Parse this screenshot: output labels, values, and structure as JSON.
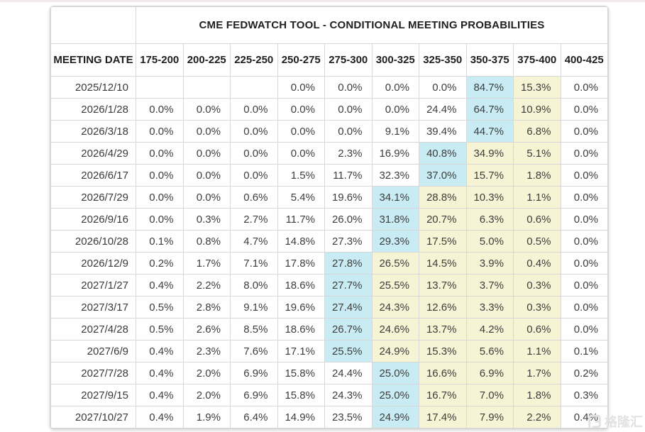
{
  "page": {
    "top_accent_color": "#f2eae9",
    "modal_highlight_color": "#c9ecf4",
    "tail_highlight_color": "#f6f4d4",
    "grid_color": "#d8d8d8"
  },
  "chart_data": {
    "type": "table",
    "title": "CME FEDWATCH TOOL - CONDITIONAL MEETING PROBABILITIES",
    "date_column_header": "MEETING DATE",
    "rate_columns": [
      "175-200",
      "200-225",
      "225-250",
      "250-275",
      "275-300",
      "300-325",
      "325-350",
      "350-375",
      "375-400",
      "400-425"
    ],
    "rows": [
      {
        "date": "2025/12/10",
        "values": [
          "",
          "",
          "",
          "0.0%",
          "0.0%",
          "0.0%",
          "0.0%",
          "84.7%",
          "15.3%",
          "0.0%"
        ],
        "hl": [
          "",
          "",
          "",
          "",
          "",
          "",
          "",
          "c",
          "y",
          ""
        ]
      },
      {
        "date": "2026/1/28",
        "values": [
          "0.0%",
          "0.0%",
          "0.0%",
          "0.0%",
          "0.0%",
          "0.0%",
          "24.4%",
          "64.7%",
          "10.9%",
          "0.0%"
        ],
        "hl": [
          "",
          "",
          "",
          "",
          "",
          "",
          "",
          "c",
          "y",
          ""
        ]
      },
      {
        "date": "2026/3/18",
        "values": [
          "0.0%",
          "0.0%",
          "0.0%",
          "0.0%",
          "0.0%",
          "9.1%",
          "39.4%",
          "44.7%",
          "6.8%",
          "0.0%"
        ],
        "hl": [
          "",
          "",
          "",
          "",
          "",
          "",
          "",
          "c",
          "y",
          ""
        ]
      },
      {
        "date": "2026/4/29",
        "values": [
          "0.0%",
          "0.0%",
          "0.0%",
          "0.0%",
          "2.3%",
          "16.9%",
          "40.8%",
          "34.9%",
          "5.1%",
          "0.0%"
        ],
        "hl": [
          "",
          "",
          "",
          "",
          "",
          "",
          "c",
          "y",
          "y",
          ""
        ]
      },
      {
        "date": "2026/6/17",
        "values": [
          "0.0%",
          "0.0%",
          "0.0%",
          "1.5%",
          "11.7%",
          "32.3%",
          "37.0%",
          "15.7%",
          "1.8%",
          "0.0%"
        ],
        "hl": [
          "",
          "",
          "",
          "",
          "",
          "",
          "c",
          "y",
          "y",
          ""
        ]
      },
      {
        "date": "2026/7/29",
        "values": [
          "0.0%",
          "0.0%",
          "0.6%",
          "5.4%",
          "19.6%",
          "34.1%",
          "28.8%",
          "10.3%",
          "1.1%",
          "0.0%"
        ],
        "hl": [
          "",
          "",
          "",
          "",
          "",
          "c",
          "y",
          "y",
          "y",
          ""
        ]
      },
      {
        "date": "2026/9/16",
        "values": [
          "0.0%",
          "0.3%",
          "2.7%",
          "11.7%",
          "26.0%",
          "31.8%",
          "20.7%",
          "6.3%",
          "0.6%",
          "0.0%"
        ],
        "hl": [
          "",
          "",
          "",
          "",
          "",
          "c",
          "y",
          "y",
          "y",
          ""
        ]
      },
      {
        "date": "2026/10/28",
        "values": [
          "0.1%",
          "0.8%",
          "4.7%",
          "14.8%",
          "27.3%",
          "29.3%",
          "17.5%",
          "5.0%",
          "0.5%",
          "0.0%"
        ],
        "hl": [
          "",
          "",
          "",
          "",
          "",
          "c",
          "y",
          "y",
          "y",
          ""
        ]
      },
      {
        "date": "2026/12/9",
        "values": [
          "0.2%",
          "1.7%",
          "7.1%",
          "17.8%",
          "27.8%",
          "26.5%",
          "14.5%",
          "3.9%",
          "0.4%",
          "0.0%"
        ],
        "hl": [
          "",
          "",
          "",
          "",
          "c",
          "y",
          "y",
          "y",
          "y",
          ""
        ]
      },
      {
        "date": "2027/1/27",
        "values": [
          "0.4%",
          "2.2%",
          "8.0%",
          "18.6%",
          "27.7%",
          "25.5%",
          "13.7%",
          "3.7%",
          "0.3%",
          "0.0%"
        ],
        "hl": [
          "",
          "",
          "",
          "",
          "c",
          "y",
          "y",
          "y",
          "y",
          ""
        ]
      },
      {
        "date": "2027/3/17",
        "values": [
          "0.5%",
          "2.8%",
          "9.1%",
          "19.6%",
          "27.4%",
          "24.3%",
          "12.6%",
          "3.3%",
          "0.3%",
          "0.0%"
        ],
        "hl": [
          "",
          "",
          "",
          "",
          "c",
          "y",
          "y",
          "y",
          "y",
          ""
        ]
      },
      {
        "date": "2027/4/28",
        "values": [
          "0.5%",
          "2.6%",
          "8.5%",
          "18.6%",
          "26.7%",
          "24.6%",
          "13.7%",
          "4.2%",
          "0.6%",
          "0.0%"
        ],
        "hl": [
          "",
          "",
          "",
          "",
          "c",
          "y",
          "y",
          "y",
          "y",
          ""
        ]
      },
      {
        "date": "2027/6/9",
        "values": [
          "0.4%",
          "2.3%",
          "7.6%",
          "17.1%",
          "25.5%",
          "24.9%",
          "15.3%",
          "5.6%",
          "1.1%",
          "0.1%"
        ],
        "hl": [
          "",
          "",
          "",
          "",
          "c",
          "y",
          "y",
          "y",
          "y",
          ""
        ]
      },
      {
        "date": "2027/7/28",
        "values": [
          "0.4%",
          "2.0%",
          "6.9%",
          "15.8%",
          "24.4%",
          "25.0%",
          "16.6%",
          "6.9%",
          "1.7%",
          "0.2%"
        ],
        "hl": [
          "",
          "",
          "",
          "",
          "",
          "c",
          "y",
          "y",
          "y",
          ""
        ]
      },
      {
        "date": "2027/9/15",
        "values": [
          "0.4%",
          "2.0%",
          "6.9%",
          "15.8%",
          "24.3%",
          "25.0%",
          "16.7%",
          "7.0%",
          "1.8%",
          "0.3%"
        ],
        "hl": [
          "",
          "",
          "",
          "",
          "",
          "c",
          "y",
          "y",
          "y",
          ""
        ]
      },
      {
        "date": "2027/10/27",
        "values": [
          "0.4%",
          "1.9%",
          "6.4%",
          "14.9%",
          "23.5%",
          "24.9%",
          "17.4%",
          "7.9%",
          "2.2%",
          "0.4%"
        ],
        "hl": [
          "",
          "",
          "",
          "",
          "",
          "c",
          "y",
          "y",
          "y",
          ""
        ]
      }
    ]
  },
  "watermark": {
    "text": "格隆汇"
  }
}
